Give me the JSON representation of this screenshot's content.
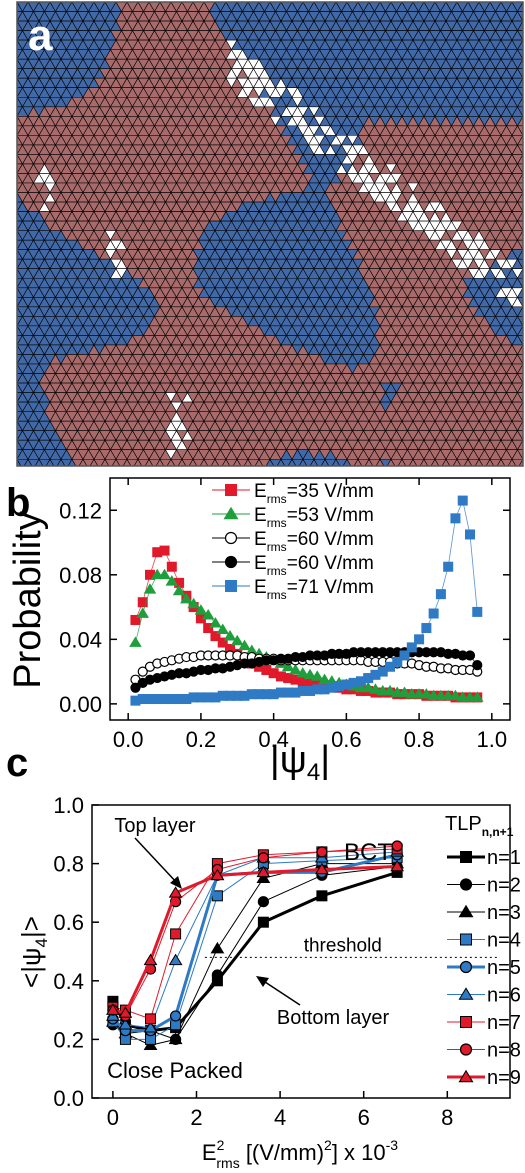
{
  "panel_a": {
    "letter": "a",
    "colors": {
      "red": "#a86a6a",
      "blue": "#4169a8",
      "white": "#ffffff",
      "edge": "#000000"
    }
  },
  "panel_b": {
    "letter": "b"
  },
  "panel_c": {
    "letter": "c"
  },
  "chart_data": [
    {
      "type": "scatter",
      "panel": "b",
      "ylabel": "Probability",
      "xlabel": "|ψ",
      "xlabel_sub": "4",
      "xlim": [
        -0.05,
        1.05
      ],
      "ylim": [
        -0.01,
        0.14
      ],
      "xticks": [
        "0.0",
        "0.2",
        "0.4",
        "0.6",
        "0.8",
        "1.0"
      ],
      "xtick_values": [
        0,
        0.2,
        0.4,
        0.6,
        0.8,
        1.0
      ],
      "yticks": [
        "0.00",
        "0.04",
        "0.08",
        "0.12"
      ],
      "ytick_values": [
        0,
        0.04,
        0.08,
        0.12
      ],
      "legend_position": "top",
      "series": [
        {
          "name": "E",
          "sub": "rms",
          "value": "=35 V/mm",
          "color": "#e0192b",
          "marker": "square",
          "fill": "#e0192b",
          "x": [
            0.02,
            0.04,
            0.06,
            0.08,
            0.1,
            0.12,
            0.14,
            0.16,
            0.18,
            0.2,
            0.22,
            0.24,
            0.26,
            0.28,
            0.3,
            0.32,
            0.34,
            0.36,
            0.38,
            0.4,
            0.42,
            0.44,
            0.46,
            0.48,
            0.5,
            0.52,
            0.54,
            0.56,
            0.58,
            0.6,
            0.62,
            0.64,
            0.66,
            0.68,
            0.7,
            0.72,
            0.74,
            0.76,
            0.78,
            0.8,
            0.82,
            0.84,
            0.86,
            0.88,
            0.9,
            0.92,
            0.94,
            0.96
          ],
          "y": [
            0.052,
            0.063,
            0.08,
            0.094,
            0.095,
            0.085,
            0.075,
            0.067,
            0.06,
            0.053,
            0.047,
            0.042,
            0.038,
            0.034,
            0.031,
            0.028,
            0.025,
            0.023,
            0.021,
            0.019,
            0.017,
            0.016,
            0.015,
            0.014,
            0.013,
            0.012,
            0.011,
            0.011,
            0.01,
            0.009,
            0.009,
            0.008,
            0.008,
            0.007,
            0.007,
            0.007,
            0.006,
            0.006,
            0.006,
            0.006,
            0.005,
            0.005,
            0.005,
            0.005,
            0.004,
            0.004,
            0.004,
            0.004
          ]
        },
        {
          "name": "E",
          "sub": "rms",
          "value": "=53 V/mm",
          "color": "#1f9e3c",
          "marker": "triangle",
          "fill": "#1f9e3c",
          "x": [
            0.02,
            0.04,
            0.06,
            0.08,
            0.1,
            0.12,
            0.14,
            0.16,
            0.18,
            0.2,
            0.22,
            0.24,
            0.26,
            0.28,
            0.3,
            0.32,
            0.34,
            0.36,
            0.38,
            0.4,
            0.42,
            0.44,
            0.46,
            0.48,
            0.5,
            0.52,
            0.54,
            0.56,
            0.58,
            0.6,
            0.62,
            0.64,
            0.66,
            0.68,
            0.7,
            0.72,
            0.74,
            0.76,
            0.78,
            0.8,
            0.82,
            0.84,
            0.86,
            0.88,
            0.9,
            0.92,
            0.94,
            0.96
          ],
          "y": [
            0.038,
            0.056,
            0.071,
            0.08,
            0.08,
            0.076,
            0.07,
            0.065,
            0.062,
            0.058,
            0.055,
            0.05,
            0.046,
            0.042,
            0.039,
            0.036,
            0.033,
            0.031,
            0.029,
            0.027,
            0.025,
            0.023,
            0.021,
            0.019,
            0.018,
            0.017,
            0.015,
            0.014,
            0.013,
            0.012,
            0.011,
            0.01,
            0.01,
            0.009,
            0.008,
            0.008,
            0.007,
            0.007,
            0.006,
            0.006,
            0.006,
            0.005,
            0.005,
            0.005,
            0.005,
            0.004,
            0.004,
            0.004
          ]
        },
        {
          "name": "E",
          "sub": "rms",
          "value": "=60 V/mm",
          "color": "#000000",
          "marker": "circle",
          "fill": "#ffffff",
          "x": [
            0.02,
            0.04,
            0.06,
            0.08,
            0.1,
            0.12,
            0.14,
            0.16,
            0.18,
            0.2,
            0.22,
            0.24,
            0.26,
            0.28,
            0.3,
            0.32,
            0.34,
            0.36,
            0.38,
            0.4,
            0.42,
            0.44,
            0.46,
            0.48,
            0.5,
            0.52,
            0.54,
            0.56,
            0.58,
            0.6,
            0.62,
            0.64,
            0.66,
            0.68,
            0.7,
            0.72,
            0.74,
            0.76,
            0.78,
            0.8,
            0.82,
            0.84,
            0.86,
            0.88,
            0.9,
            0.92,
            0.94,
            0.96
          ],
          "y": [
            0.015,
            0.02,
            0.023,
            0.025,
            0.026,
            0.027,
            0.028,
            0.029,
            0.029,
            0.03,
            0.03,
            0.03,
            0.03,
            0.03,
            0.03,
            0.029,
            0.029,
            0.028,
            0.028,
            0.028,
            0.027,
            0.027,
            0.027,
            0.027,
            0.027,
            0.027,
            0.027,
            0.027,
            0.027,
            0.027,
            0.027,
            0.027,
            0.026,
            0.026,
            0.026,
            0.026,
            0.025,
            0.025,
            0.025,
            0.024,
            0.023,
            0.023,
            0.022,
            0.022,
            0.021,
            0.021,
            0.021,
            0.02
          ]
        },
        {
          "name": "E",
          "sub": "rms",
          "value": "=60 V/mm",
          "color": "#000000",
          "marker": "circle",
          "fill": "#000000",
          "x": [
            0.02,
            0.04,
            0.06,
            0.08,
            0.1,
            0.12,
            0.14,
            0.16,
            0.18,
            0.2,
            0.22,
            0.24,
            0.26,
            0.28,
            0.3,
            0.32,
            0.34,
            0.36,
            0.38,
            0.4,
            0.42,
            0.44,
            0.46,
            0.48,
            0.5,
            0.52,
            0.54,
            0.56,
            0.58,
            0.6,
            0.62,
            0.64,
            0.66,
            0.68,
            0.7,
            0.72,
            0.74,
            0.76,
            0.78,
            0.8,
            0.82,
            0.84,
            0.86,
            0.88,
            0.9,
            0.92,
            0.94,
            0.96
          ],
          "y": [
            0.01,
            0.013,
            0.015,
            0.016,
            0.017,
            0.018,
            0.019,
            0.019,
            0.02,
            0.021,
            0.021,
            0.022,
            0.022,
            0.023,
            0.024,
            0.025,
            0.025,
            0.026,
            0.027,
            0.027,
            0.028,
            0.028,
            0.029,
            0.029,
            0.03,
            0.03,
            0.03,
            0.031,
            0.031,
            0.031,
            0.032,
            0.032,
            0.032,
            0.032,
            0.032,
            0.032,
            0.032,
            0.032,
            0.032,
            0.032,
            0.032,
            0.032,
            0.032,
            0.031,
            0.031,
            0.03,
            0.03,
            0.024
          ]
        },
        {
          "name": "E",
          "sub": "rms",
          "value": "=71 V/mm",
          "color": "#2e7ac4",
          "marker": "square",
          "fill": "#2e7ac4",
          "x": [
            0.02,
            0.04,
            0.06,
            0.08,
            0.1,
            0.12,
            0.14,
            0.16,
            0.18,
            0.2,
            0.22,
            0.24,
            0.26,
            0.28,
            0.3,
            0.32,
            0.34,
            0.36,
            0.38,
            0.4,
            0.42,
            0.44,
            0.46,
            0.48,
            0.5,
            0.52,
            0.54,
            0.56,
            0.58,
            0.6,
            0.62,
            0.64,
            0.66,
            0.68,
            0.7,
            0.72,
            0.74,
            0.76,
            0.78,
            0.8,
            0.82,
            0.84,
            0.86,
            0.88,
            0.9,
            0.92,
            0.94,
            0.96
          ],
          "y": [
            0.002,
            0.003,
            0.003,
            0.003,
            0.003,
            0.003,
            0.003,
            0.003,
            0.004,
            0.004,
            0.004,
            0.004,
            0.005,
            0.005,
            0.005,
            0.005,
            0.006,
            0.006,
            0.006,
            0.006,
            0.007,
            0.007,
            0.007,
            0.008,
            0.008,
            0.009,
            0.009,
            0.01,
            0.011,
            0.012,
            0.013,
            0.014,
            0.016,
            0.018,
            0.02,
            0.023,
            0.026,
            0.03,
            0.035,
            0.04,
            0.047,
            0.056,
            0.068,
            0.085,
            0.115,
            0.126,
            0.105,
            0.057
          ]
        }
      ]
    },
    {
      "type": "line",
      "panel": "c",
      "ylabel": "<|ψ",
      "ylabel_sub": "4",
      "ylabel_end": "|>",
      "xlabel_main": "E",
      "xlabel_sup": "2",
      "xlabel_sub": "rms",
      "xlabel_rest": " [(V/mm)",
      "xlabel_sup2": "2",
      "xlabel_end": "] x 10",
      "xlabel_sup3": "-3",
      "xlim": [
        -0.5,
        9.5
      ],
      "ylim": [
        0.0,
        1.0
      ],
      "xticks": [
        "0",
        "2",
        "4",
        "6",
        "8"
      ],
      "xtick_values": [
        0,
        2,
        4,
        6,
        8
      ],
      "yticks": [
        "0.0",
        "0.2",
        "0.4",
        "0.6",
        "0.8",
        "1.0"
      ],
      "ytick_values": [
        0,
        0.2,
        0.4,
        0.6,
        0.8,
        1.0
      ],
      "legend_title": "TLP",
      "legend_title_sub": "n,n+1",
      "threshold": {
        "y": 0.48,
        "label": "threshold"
      },
      "annotations": [
        {
          "text": "BCT"
        },
        {
          "text": "Top layer"
        },
        {
          "text": "Bottom layer"
        },
        {
          "text": "Close Packed"
        }
      ],
      "series": [
        {
          "name": "n=1",
          "color": "#000000",
          "marker": "square",
          "width": 3,
          "x": [
            0,
            0.3,
            0.9,
            1.5,
            2.5,
            3.6,
            5.0,
            6.8
          ],
          "y": [
            0.33,
            0.25,
            0.23,
            0.24,
            0.4,
            0.6,
            0.69,
            0.77
          ]
        },
        {
          "name": "n=2",
          "color": "#000000",
          "marker": "circle",
          "width": 1,
          "x": [
            0,
            0.3,
            0.9,
            1.5,
            2.5,
            3.6,
            5.0,
            6.8
          ],
          "y": [
            0.25,
            0.22,
            0.23,
            0.2,
            0.42,
            0.67,
            0.76,
            0.79
          ]
        },
        {
          "name": "n=3",
          "color": "#000000",
          "marker": "triangle",
          "width": 1,
          "x": [
            0,
            0.3,
            0.9,
            1.5,
            2.5,
            3.6,
            5.0,
            6.8
          ],
          "y": [
            0.26,
            0.22,
            0.18,
            0.2,
            0.51,
            0.75,
            0.8,
            0.8
          ]
        },
        {
          "name": "n=4",
          "color": "#2e7ac4",
          "marker": "square",
          "width": 1,
          "x": [
            0,
            0.3,
            0.9,
            1.5,
            2.5,
            3.6,
            5.0,
            6.8
          ],
          "y": [
            0.26,
            0.2,
            0.2,
            0.25,
            0.69,
            0.8,
            0.81,
            0.82
          ]
        },
        {
          "name": "n=5",
          "color": "#2e7ac4",
          "marker": "circle",
          "width": 3,
          "x": [
            0,
            0.3,
            0.9,
            1.5,
            2.5,
            3.6,
            5.0,
            6.8
          ],
          "y": [
            0.27,
            0.23,
            0.23,
            0.28,
            0.76,
            0.77,
            0.77,
            0.83
          ]
        },
        {
          "name": "n=6",
          "color": "#2e7ac4",
          "marker": "triangle",
          "width": 1,
          "x": [
            0,
            0.3,
            0.9,
            1.5,
            2.5,
            3.6,
            5.0,
            6.8
          ],
          "y": [
            0.28,
            0.25,
            0.24,
            0.47,
            0.76,
            0.82,
            0.82,
            0.84
          ]
        },
        {
          "name": "n=7",
          "color": "#e0192b",
          "marker": "square",
          "width": 1,
          "x": [
            0,
            0.3,
            0.9,
            1.5,
            2.5,
            3.6,
            5.0,
            6.8
          ],
          "y": [
            0.31,
            0.3,
            0.27,
            0.56,
            0.8,
            0.83,
            0.84,
            0.85
          ]
        },
        {
          "name": "n=8",
          "color": "#e0192b",
          "marker": "circle",
          "width": 1,
          "x": [
            0,
            0.3,
            0.9,
            1.5,
            2.5,
            3.6,
            5.0,
            6.8
          ],
          "y": [
            0.3,
            0.28,
            0.44,
            0.67,
            0.78,
            0.82,
            0.84,
            0.86
          ]
        },
        {
          "name": "n=9",
          "color": "#e0192b",
          "marker": "triangle",
          "width": 3,
          "x": [
            0,
            0.3,
            0.9,
            1.5,
            2.5,
            3.6,
            5.0,
            6.8
          ],
          "y": [
            0.3,
            0.29,
            0.47,
            0.7,
            0.76,
            0.77,
            0.78,
            0.79
          ]
        }
      ]
    }
  ]
}
